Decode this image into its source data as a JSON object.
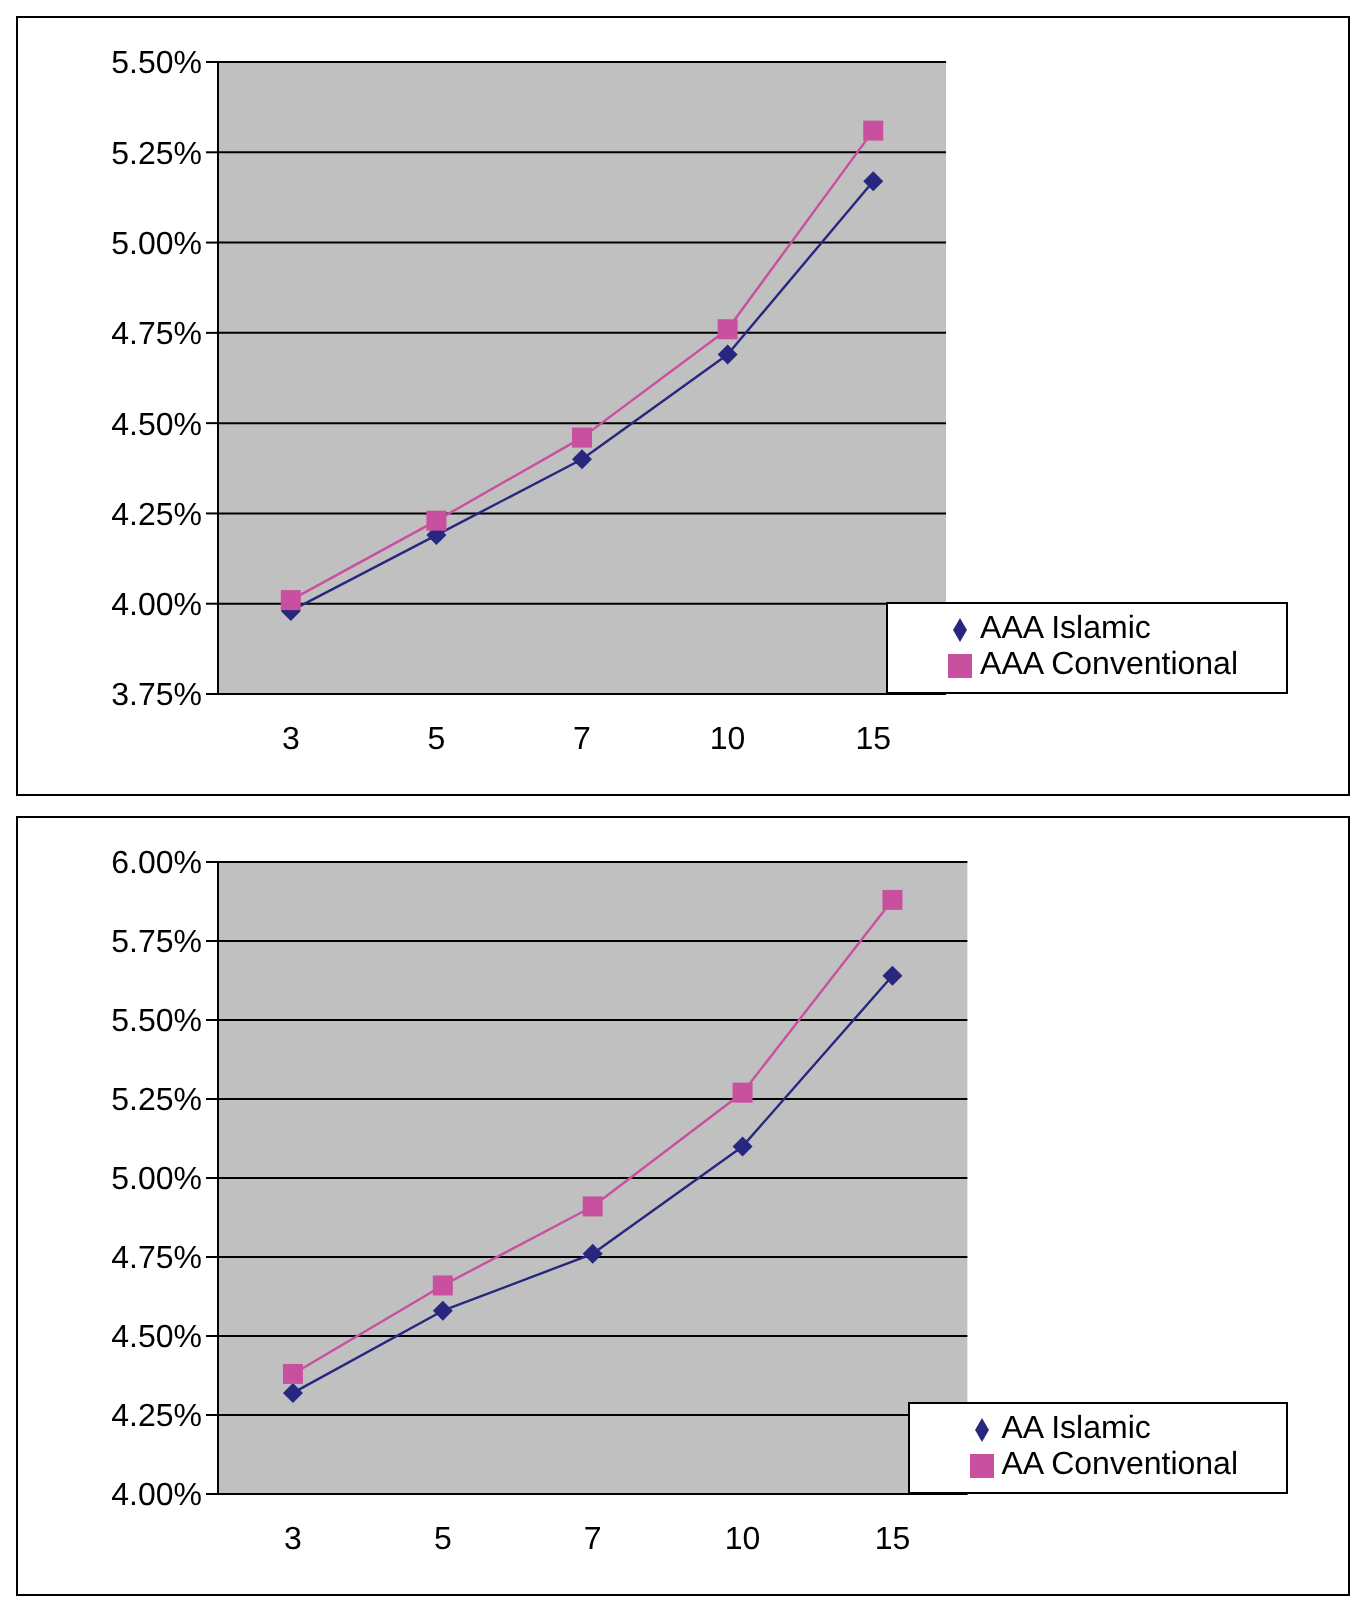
{
  "chart_data": [
    {
      "type": "line",
      "categories": [
        "3",
        "5",
        "7",
        "10",
        "15"
      ],
      "series": [
        {
          "name": "AAA Islamic",
          "color": "#27277f",
          "marker": "diamond",
          "values": [
            3.98,
            4.19,
            4.4,
            4.69,
            5.17
          ]
        },
        {
          "name": "AAA Conventional",
          "color": "#c8509f",
          "marker": "square",
          "values": [
            4.01,
            4.23,
            4.46,
            4.76,
            5.31
          ]
        }
      ],
      "ylim": [
        3.75,
        5.5
      ],
      "yticks": [
        {
          "value": 3.75,
          "label": "3.75%"
        },
        {
          "value": 4.0,
          "label": "4.00%"
        },
        {
          "value": 4.25,
          "label": "4.25%"
        },
        {
          "value": 4.5,
          "label": "4.50%"
        },
        {
          "value": 4.75,
          "label": "4.75%"
        },
        {
          "value": 5.0,
          "label": "5.00%"
        },
        {
          "value": 5.25,
          "label": "5.25%"
        },
        {
          "value": 5.5,
          "label": "5.50%"
        }
      ],
      "grid": "y",
      "legend": "bottom right"
    },
    {
      "type": "line",
      "categories": [
        "3",
        "5",
        "7",
        "10",
        "15"
      ],
      "series": [
        {
          "name": "AA Islamic",
          "color": "#27277f",
          "marker": "diamond",
          "values": [
            4.32,
            4.58,
            4.76,
            5.1,
            5.64
          ]
        },
        {
          "name": "AA Conventional",
          "color": "#c8509f",
          "marker": "square",
          "values": [
            4.38,
            4.66,
            4.91,
            5.27,
            5.88
          ]
        }
      ],
      "ylim": [
        4.0,
        6.0
      ],
      "yticks": [
        {
          "value": 4.0,
          "label": "4.00%"
        },
        {
          "value": 4.25,
          "label": "4.25%"
        },
        {
          "value": 4.5,
          "label": "4.50%"
        },
        {
          "value": 4.75,
          "label": "4.75%"
        },
        {
          "value": 5.0,
          "label": "5.00%"
        },
        {
          "value": 5.25,
          "label": "5.25%"
        },
        {
          "value": 5.5,
          "label": "5.50%"
        },
        {
          "value": 5.75,
          "label": "5.75%"
        },
        {
          "value": 6.0,
          "label": "6.00%"
        }
      ],
      "grid": "y",
      "legend": "bottom right"
    }
  ]
}
